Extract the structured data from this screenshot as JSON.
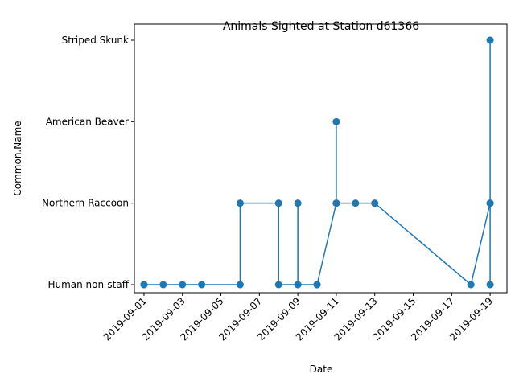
{
  "chart_data": {
    "type": "line",
    "title": "Animals Sighted at Station d61366",
    "xlabel": "Date",
    "ylabel": "Common.Name",
    "categories": [
      "Human non-staff",
      "Northern Raccoon",
      "American Beaver",
      "Striped Skunk"
    ],
    "xlim": [
      "2019-08-31T12:00",
      "2019-09-19T21:00"
    ],
    "x_ticks": [
      "2019-09-01",
      "2019-09-03",
      "2019-09-05",
      "2019-09-07",
      "2019-09-09",
      "2019-09-11",
      "2019-09-13",
      "2019-09-15",
      "2019-09-17",
      "2019-09-19"
    ],
    "grid": false,
    "legend": "none",
    "series": [
      {
        "color": "#1f77b4",
        "marker": "circle",
        "points": [
          {
            "x": "2019-09-01T00:00",
            "y": "Human non-staff"
          },
          {
            "x": "2019-09-01T00:00",
            "y": "Human non-staff"
          },
          {
            "x": "2019-09-02T00:00",
            "y": "Human non-staff"
          },
          {
            "x": "2019-09-03T00:00",
            "y": "Human non-staff"
          },
          {
            "x": "2019-09-04T00:00",
            "y": "Human non-staff"
          },
          {
            "x": "2019-09-06T00:00",
            "y": "Human non-staff"
          },
          {
            "x": "2019-09-06T00:00",
            "y": "Northern Raccoon"
          },
          {
            "x": "2019-09-08T00:00",
            "y": "Northern Raccoon"
          },
          {
            "x": "2019-09-08T00:00",
            "y": "Human non-staff"
          },
          {
            "x": "2019-09-09T00:00",
            "y": "Human non-staff"
          },
          {
            "x": "2019-09-09T00:00",
            "y": "Northern Raccoon"
          },
          {
            "x": "2019-09-09T00:00",
            "y": "Human non-staff"
          },
          {
            "x": "2019-09-10T00:00",
            "y": "Human non-staff"
          },
          {
            "x": "2019-09-10T00:00",
            "y": "Human non-staff"
          },
          {
            "x": "2019-09-11T00:00",
            "y": "Northern Raccoon"
          },
          {
            "x": "2019-09-11T00:00",
            "y": "American Beaver"
          },
          {
            "x": "2019-09-11T00:00",
            "y": "Northern Raccoon"
          },
          {
            "x": "2019-09-12T00:00",
            "y": "Northern Raccoon"
          },
          {
            "x": "2019-09-13T00:00",
            "y": "Northern Raccoon"
          },
          {
            "x": "2019-09-18T00:00",
            "y": "Human non-staff"
          },
          {
            "x": "2019-09-19T00:00",
            "y": "Northern Raccoon"
          },
          {
            "x": "2019-09-19T00:00",
            "y": "Striped Skunk"
          },
          {
            "x": "2019-09-19T00:00",
            "y": "Northern Raccoon"
          },
          {
            "x": "2019-09-19T00:00",
            "y": "Human non-staff"
          }
        ]
      }
    ]
  }
}
